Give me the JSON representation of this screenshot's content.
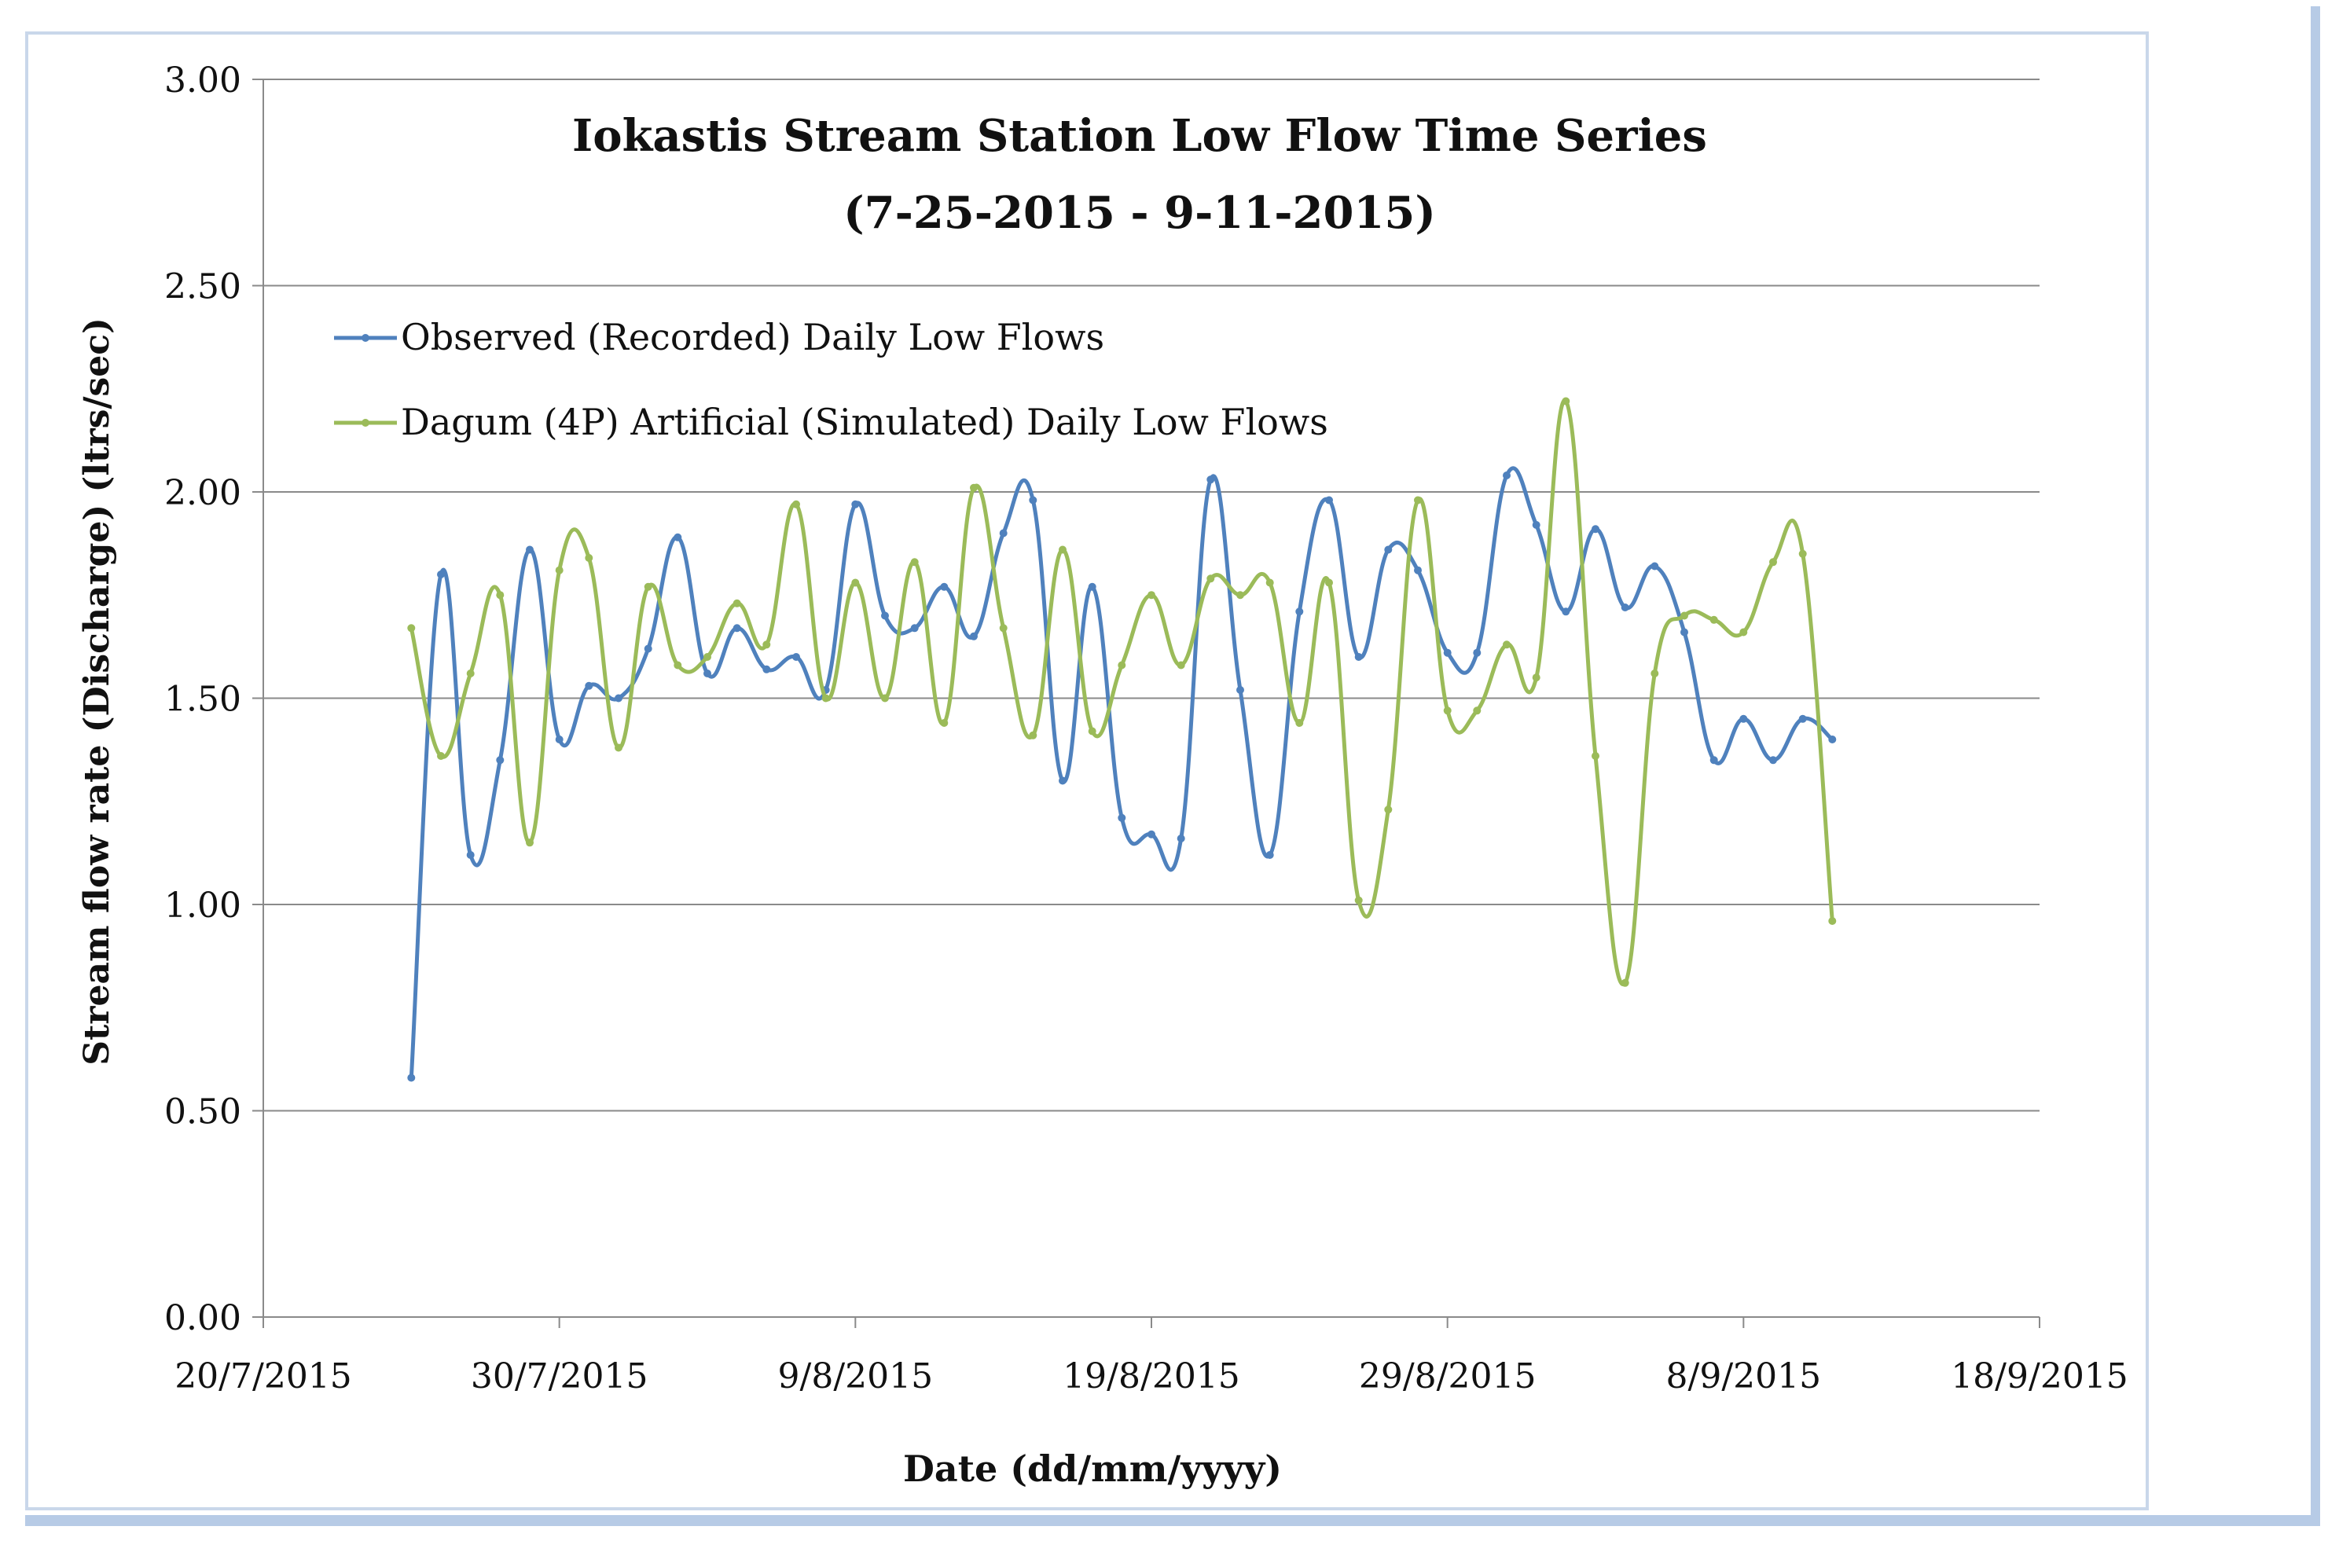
{
  "chart_data": {
    "type": "line",
    "title": "Iokastis Stream Station Low Flow Time Series",
    "subtitle": "(7-25-2015 - 9-11-2015)",
    "xlabel": "Date (dd/mm/yyyy)",
    "ylabel": "Stream flow rate (Discharge) (ltrs/sec)",
    "x_ticks": [
      "20/7/2015",
      "30/7/2015",
      "9/8/2015",
      "19/8/2015",
      "29/8/2015",
      "8/9/2015",
      "18/9/2015"
    ],
    "y_ticks": [
      "0.00",
      "0.50",
      "1.00",
      "1.50",
      "2.00",
      "2.50",
      "3.00"
    ],
    "xlim": [
      "2015-07-20",
      "2015-09-18"
    ],
    "ylim": [
      0,
      3
    ],
    "grid": true,
    "legend": "top-left",
    "x": [
      "2015-07-25",
      "2015-07-26",
      "2015-07-27",
      "2015-07-28",
      "2015-07-29",
      "2015-07-30",
      "2015-07-31",
      "2015-08-01",
      "2015-08-02",
      "2015-08-03",
      "2015-08-04",
      "2015-08-05",
      "2015-08-06",
      "2015-08-07",
      "2015-08-08",
      "2015-08-09",
      "2015-08-10",
      "2015-08-11",
      "2015-08-12",
      "2015-08-13",
      "2015-08-14",
      "2015-08-15",
      "2015-08-16",
      "2015-08-17",
      "2015-08-18",
      "2015-08-19",
      "2015-08-20",
      "2015-08-21",
      "2015-08-22",
      "2015-08-23",
      "2015-08-24",
      "2015-08-25",
      "2015-08-26",
      "2015-08-27",
      "2015-08-28",
      "2015-08-29",
      "2015-08-30",
      "2015-08-31",
      "2015-09-01",
      "2015-09-02",
      "2015-09-03",
      "2015-09-04",
      "2015-09-05",
      "2015-09-06",
      "2015-09-07",
      "2015-09-08",
      "2015-09-09",
      "2015-09-10",
      "2015-09-11"
    ],
    "series": [
      {
        "name": "Observed (Recorded) Daily Low Flows",
        "color": "#4f81bd",
        "values": [
          0.58,
          1.8,
          1.12,
          1.35,
          1.86,
          1.4,
          1.53,
          1.5,
          1.62,
          1.89,
          1.56,
          1.67,
          1.57,
          1.6,
          1.52,
          1.97,
          1.7,
          1.67,
          1.77,
          1.65,
          1.9,
          1.98,
          1.3,
          1.77,
          1.21,
          1.17,
          1.16,
          2.03,
          1.52,
          1.12,
          1.71,
          1.98,
          1.6,
          1.86,
          1.81,
          1.61,
          1.61,
          2.04,
          1.92,
          1.71,
          1.91,
          1.72,
          1.82,
          1.66,
          1.35,
          1.45,
          1.35,
          1.45,
          1.4
        ]
      },
      {
        "name": "Dagum (4P) Artificial (Simulated) Daily Low Flows",
        "color": "#9bbb59",
        "values": [
          1.67,
          1.36,
          1.56,
          1.75,
          1.15,
          1.81,
          1.84,
          1.38,
          1.77,
          1.58,
          1.6,
          1.73,
          1.63,
          1.97,
          1.5,
          1.78,
          1.5,
          1.83,
          1.44,
          2.01,
          1.67,
          1.41,
          1.86,
          1.42,
          1.58,
          1.75,
          1.58,
          1.79,
          1.75,
          1.78,
          1.44,
          1.78,
          1.01,
          1.23,
          1.98,
          1.47,
          1.47,
          1.63,
          1.55,
          2.22,
          1.36,
          0.81,
          1.56,
          1.7,
          1.69,
          1.66,
          1.83,
          1.85,
          0.96
        ]
      }
    ]
  }
}
